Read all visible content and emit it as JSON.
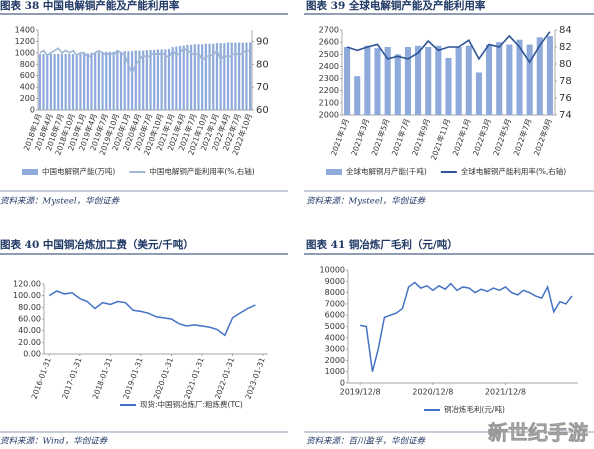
{
  "chart_data": [
    {
      "type": "bar",
      "title": "图表 38   中国电解铜产能及产能利用率",
      "source": "资料来源：Mysteel，华创证券",
      "categories": [
        "2018年1月",
        null,
        null,
        "2018年4月",
        null,
        null,
        "2018年7月",
        null,
        null,
        "2018年10月",
        null,
        null,
        "2019年1月",
        null,
        null,
        "2019年4月",
        null,
        null,
        "2019年7月",
        null,
        null,
        "2019年10月",
        null,
        null,
        "2020年1月",
        null,
        null,
        "2020年4月",
        null,
        null,
        "2020年7月",
        null,
        null,
        "2020年10月",
        null,
        null,
        "2021年1月",
        null,
        null,
        "2021年4月",
        null,
        null,
        "2021年7月",
        null,
        null,
        "2021年10月",
        null,
        null,
        "2022年1月",
        null,
        null,
        "2022年4月",
        null,
        null,
        "2022年7月",
        null,
        null,
        "2022年10月"
      ],
      "series": [
        {
          "name": "中国电解铜产能(万吨)",
          "color": "#8eaadb",
          "values": [
            980,
            980,
            980,
            980,
            980,
            980,
            980,
            980,
            980,
            980,
            980,
            980,
            990,
            990,
            1000,
            1000,
            1010,
            1010,
            1020,
            1020,
            1020,
            1020,
            1020,
            1030,
            1030,
            1030,
            1040,
            1040,
            1040,
            1050,
            1050,
            1050,
            1060,
            1060,
            1060,
            1070,
            1100,
            1110,
            1120,
            1130,
            1140,
            1140,
            1150,
            1150,
            1150,
            1160,
            1160,
            1160,
            1170,
            1170,
            1170,
            1180,
            1180,
            1180,
            1180,
            1180,
            1180,
            1180
          ]
        },
        {
          "name": "中国电解铜产能利用率(%,右轴)",
          "color": "#9fb6d6",
          "axis": "y2",
          "values": [
            85,
            86,
            84,
            85,
            86,
            87,
            85,
            86,
            85,
            86,
            84,
            85,
            85,
            83,
            84,
            85,
            86,
            85,
            84,
            85,
            84,
            86,
            85,
            84,
            80,
            76,
            80,
            82,
            84,
            83,
            84,
            85,
            84,
            85,
            84,
            83,
            86,
            84,
            85,
            87,
            86,
            85,
            84,
            85,
            82,
            83,
            84,
            84,
            86,
            82,
            84,
            83,
            84,
            85,
            84,
            85,
            86,
            86
          ]
        }
      ],
      "ylim": [
        0,
        1400
      ],
      "yticks": [
        0,
        200,
        400,
        600,
        800,
        1000,
        1200,
        1400
      ],
      "y2lim": [
        60,
        95
      ],
      "y2ticks": [
        60,
        70,
        80,
        90
      ]
    },
    {
      "type": "bar",
      "title": "图表 39   全球电解铜产能及产能利用率",
      "source": "资料来源：Mysteel，华创证券",
      "categories": [
        "2021年1月",
        null,
        "2021年3月",
        null,
        "2021年5月",
        null,
        "2021年7月",
        null,
        "2021年9月",
        null,
        "2021年11月",
        null,
        "2022年1月",
        null,
        "2022年3月",
        null,
        "2022年5月",
        null,
        "2022年7月",
        null,
        "2022年9月"
      ],
      "series": [
        {
          "name": "全球电解铜月产能(千吨)",
          "color": "#8eaadb",
          "values": [
            2560,
            2320,
            2570,
            2550,
            2560,
            2500,
            2560,
            2570,
            2560,
            2570,
            2470,
            2560,
            2570,
            2350,
            2580,
            2600,
            2580,
            2620,
            2580,
            2640,
            2650
          ]
        },
        {
          "name": "全球电解铜产能利用率(%,右轴)",
          "color": "#2f5597",
          "axis": "y2",
          "values": [
            82,
            81.6,
            82,
            82.3,
            80.6,
            80.9,
            80.6,
            81.3,
            82.7,
            81.6,
            82,
            82,
            82.8,
            80.6,
            82.3,
            82,
            83.3,
            82,
            80.2,
            82.2,
            83.8
          ]
        }
      ],
      "ylim": [
        2000,
        2700
      ],
      "yticks": [
        2000,
        2100,
        2200,
        2300,
        2400,
        2500,
        2600,
        2700
      ],
      "y2lim": [
        74,
        84
      ],
      "y2ticks": [
        74,
        76,
        78,
        80,
        82,
        84
      ]
    },
    {
      "type": "line",
      "title": "图表 40   中国铜冶炼加工费（美元/千吨）",
      "source": "资料来源：Wind，华创证券",
      "x": [
        "2016-01-31",
        "2016-04-30",
        "2016-07-31",
        "2016-10-31",
        "2017-01-31",
        "2017-04-30",
        "2017-07-31",
        "2017-10-31",
        "2018-01-31",
        "2018-04-30",
        "2018-07-31",
        "2018-10-31",
        "2019-01-31",
        "2019-04-30",
        "2019-07-31",
        "2019-10-31",
        "2020-01-31",
        "2020-04-30",
        "2020-07-31",
        "2020-10-31",
        "2021-01-31",
        "2021-04-30",
        "2021-07-31",
        "2021-10-31",
        "2022-01-31",
        "2022-04-30",
        "2022-07-31",
        "2022-10-31"
      ],
      "series": [
        {
          "name": "现货:中国铜冶炼厂:粗炼费(TC)",
          "color": "#4472c4",
          "values": [
            100,
            108,
            103,
            105,
            95,
            90,
            78,
            88,
            85,
            90,
            88,
            75,
            73,
            70,
            64,
            62,
            60,
            52,
            48,
            50,
            48,
            46,
            42,
            32,
            62,
            70,
            78,
            84
          ]
        }
      ],
      "xlim": [
        "2015-11-30",
        "2023-03-31"
      ],
      "xticks": [
        "2016-01-31",
        "2017-01-31",
        "2018-01-31",
        "2019-01-31",
        "2020-01-31",
        "2021-01-31",
        "2022-01-31",
        "2023-01-31"
      ],
      "ylim": [
        0,
        120
      ],
      "yticks": [
        {
          "value": 0,
          "label": "0.00"
        },
        {
          "value": 20,
          "label": "20.00"
        },
        {
          "value": 40,
          "label": "40.00"
        },
        {
          "value": 60,
          "label": "60.00"
        },
        {
          "value": 80,
          "label": "80.00"
        },
        {
          "value": 100,
          "label": "100.00"
        },
        {
          "value": 120,
          "label": "120.00"
        }
      ]
    },
    {
      "type": "line",
      "title": "图表 41   铜冶炼厂毛利（元/吨）",
      "source": "资料来源：百川盈孚，华创证券",
      "watermark": "新世纪手游",
      "x": [
        "2019/12/8",
        "2020/1/8",
        "2020/2/8",
        "2020/3/8",
        "2020/4/8",
        "2020/5/8",
        "2020/6/8",
        "2020/7/8",
        "2020/8/8",
        "2020/9/8",
        "2020/10/8",
        "2020/11/8",
        "2020/12/8",
        "2021/1/8",
        "2021/2/8",
        "2021/3/8",
        "2021/4/8",
        "2021/5/8",
        "2021/6/8",
        "2021/7/8",
        "2021/8/8",
        "2021/9/8",
        "2021/10/8",
        "2021/11/8",
        "2021/12/8",
        "2022/1/8",
        "2022/2/8",
        "2022/3/8",
        "2022/4/8",
        "2022/5/8",
        "2022/6/8",
        "2022/7/8",
        "2022/8/8",
        "2022/9/8",
        "2022/10/8",
        "2022/11/8"
      ],
      "series": [
        {
          "name": "铜冶炼毛利(元/吨)",
          "color": "#4472c4",
          "values": [
            5100,
            5000,
            1000,
            3000,
            5800,
            6000,
            6200,
            6600,
            8500,
            8900,
            8400,
            8600,
            8200,
            8600,
            8300,
            8800,
            8200,
            8500,
            8400,
            8000,
            8300,
            8100,
            8400,
            8200,
            8500,
            8000,
            7800,
            8200,
            8000,
            7700,
            7500,
            8500,
            6300,
            7200,
            7000,
            7700
          ]
        }
      ],
      "xlim": [
        "2019/10/8",
        "2022/12/8"
      ],
      "xticks": [
        "2019/12/8",
        "2020/12/8",
        "2021/12/8"
      ],
      "ylim": [
        0,
        10000
      ],
      "yticks": [
        0,
        1000,
        2000,
        3000,
        4000,
        5000,
        6000,
        7000,
        8000,
        9000,
        10000
      ]
    }
  ]
}
